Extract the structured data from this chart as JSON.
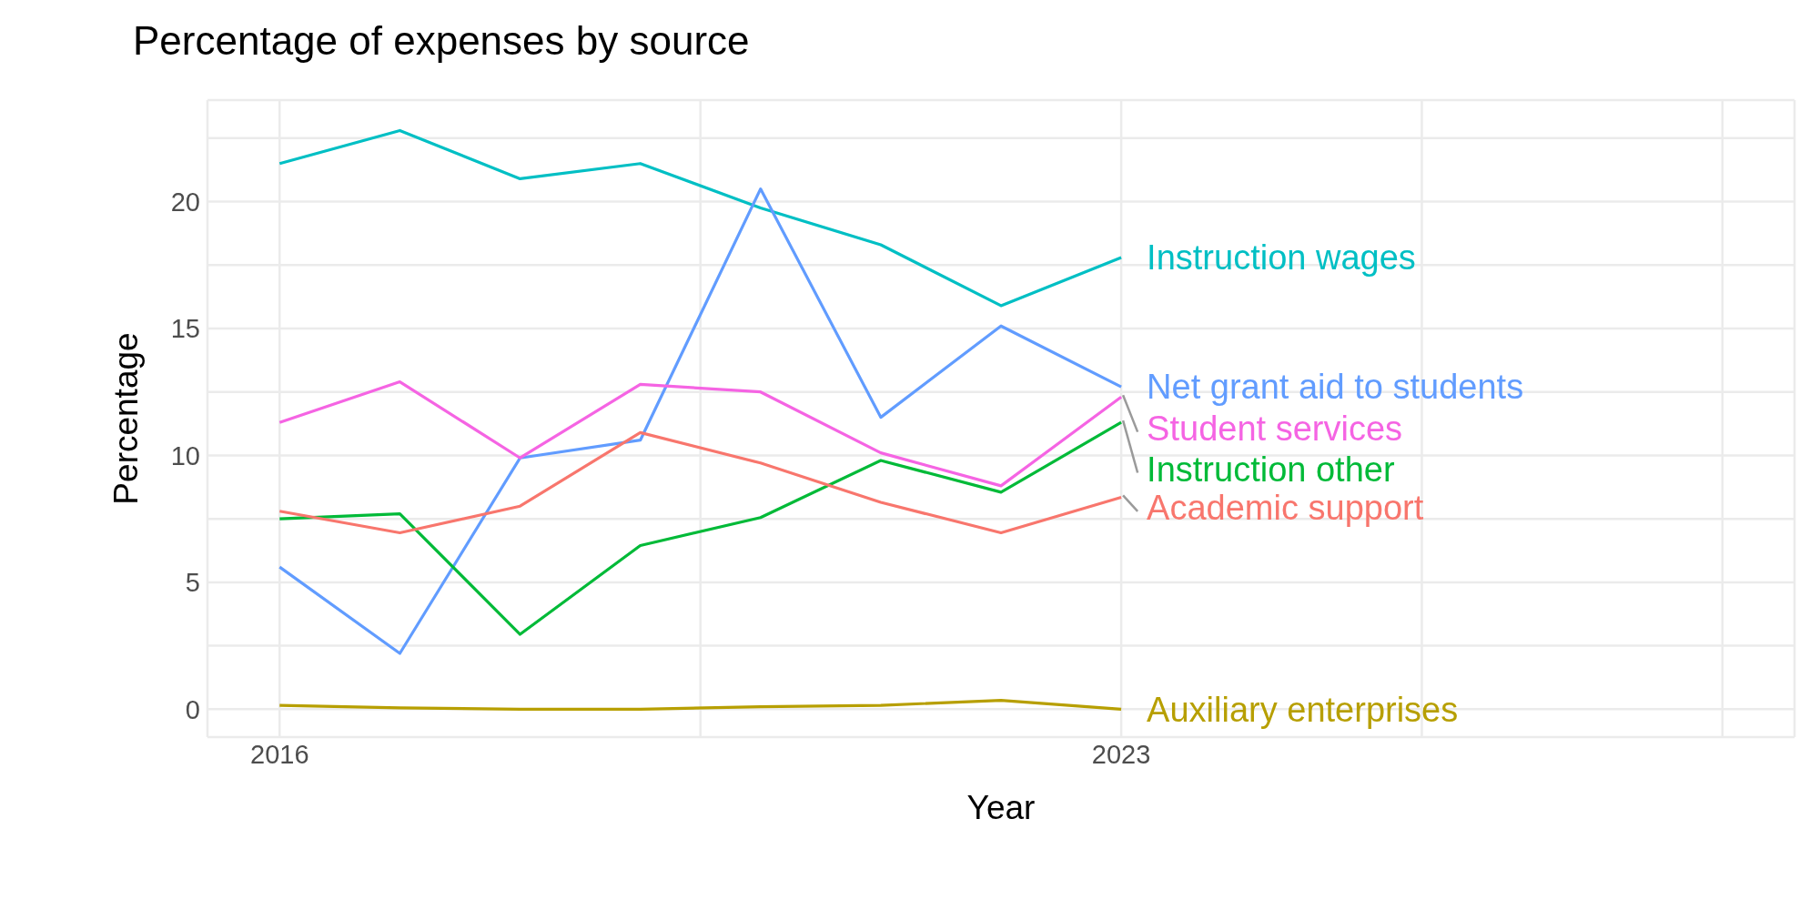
{
  "chart_data": {
    "type": "line",
    "title": "Percentage of expenses by source",
    "xlabel": "Year",
    "ylabel": "Percentage",
    "x": [
      2016,
      2017,
      2018,
      2019,
      2020,
      2021,
      2022,
      2023
    ],
    "series": [
      {
        "name": "Instruction wages",
        "color": "#00bfc4",
        "values": [
          21.5,
          22.8,
          20.9,
          21.5,
          19.75,
          18.3,
          15.9,
          17.8
        ]
      },
      {
        "name": "Net grant aid to students",
        "color": "#619cff",
        "values": [
          5.6,
          2.2,
          9.9,
          10.6,
          20.5,
          11.5,
          15.1,
          12.7
        ]
      },
      {
        "name": "Student services",
        "color": "#f564e3",
        "values": [
          11.3,
          12.9,
          9.9,
          12.8,
          12.5,
          10.1,
          8.8,
          12.3
        ]
      },
      {
        "name": "Instruction other",
        "color": "#00ba38",
        "values": [
          7.5,
          7.7,
          2.95,
          6.45,
          7.55,
          9.8,
          8.55,
          11.3
        ]
      },
      {
        "name": "Academic support",
        "color": "#f8766d",
        "values": [
          7.8,
          6.95,
          8.0,
          10.9,
          9.7,
          8.15,
          6.95,
          8.35
        ]
      },
      {
        "name": "Auxiliary enterprises",
        "color": "#b79f00",
        "values": [
          0.15,
          0.05,
          0,
          0,
          0.1,
          0.15,
          0.35,
          0
        ]
      }
    ],
    "xlim": [
      2015.4,
      2028.6
    ],
    "xticks": [
      2016,
      {
        "value": 2019.5,
        "label": null
      },
      2023,
      {
        "value": 2025.5,
        "label": null
      },
      {
        "value": 2028,
        "label": null
      }
    ],
    "ylim": [
      -1.1,
      24
    ],
    "yticks": [
      0,
      {
        "value": 2.5,
        "label": null
      },
      5,
      {
        "value": 7.5,
        "label": null
      },
      10,
      {
        "value": 12.5,
        "label": null
      },
      15,
      {
        "value": 17.5,
        "label": null
      },
      20,
      {
        "value": 22.5,
        "label": null
      }
    ],
    "grid": true,
    "legend": false,
    "marker": "none",
    "line_style": "solid"
  }
}
